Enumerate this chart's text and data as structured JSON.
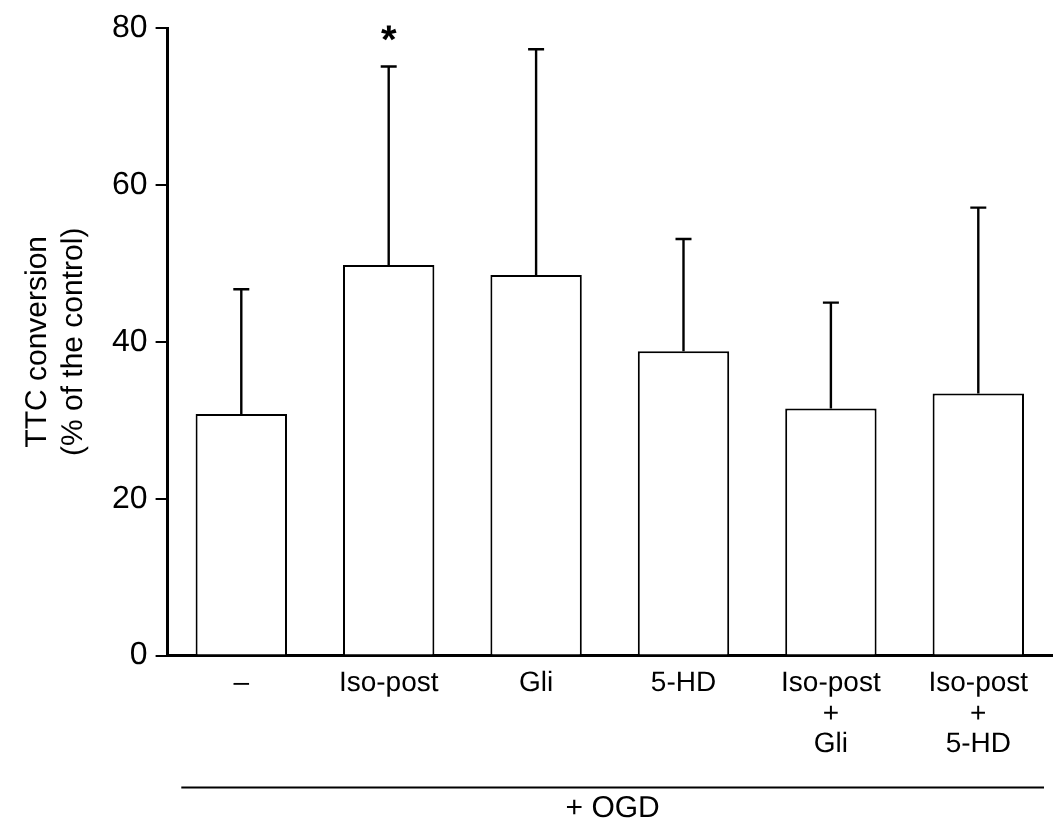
{
  "chart_data": {
    "type": "bar",
    "ylabel": "TTC conversion\n(% of the control)",
    "xlabel": "+ OGD",
    "categories": [
      "–",
      "Iso-post",
      "Gli",
      "5-HD",
      "Iso-post\n+\nGli",
      "Iso-post\n+\n5-HD"
    ],
    "series": [
      {
        "color": "#ffffff",
        "values": [
          30.8,
          49.8,
          48.5,
          38.8,
          31.5,
          33.4
        ],
        "errors": [
          [
            30.8,
            46.7
          ],
          [
            49.8,
            75.1
          ],
          [
            48.5,
            77.3
          ],
          [
            38.8,
            53.1
          ],
          [
            31.5,
            45.0
          ],
          [
            33.4,
            57.1
          ]
        ]
      }
    ],
    "ylim": [
      0,
      80
    ],
    "yticks": [
      0,
      20,
      40,
      60,
      80
    ],
    "grid": false,
    "legend": false,
    "annotations": [
      {
        "text": "*",
        "x": "Iso-post",
        "y": 75.1
      }
    ]
  }
}
